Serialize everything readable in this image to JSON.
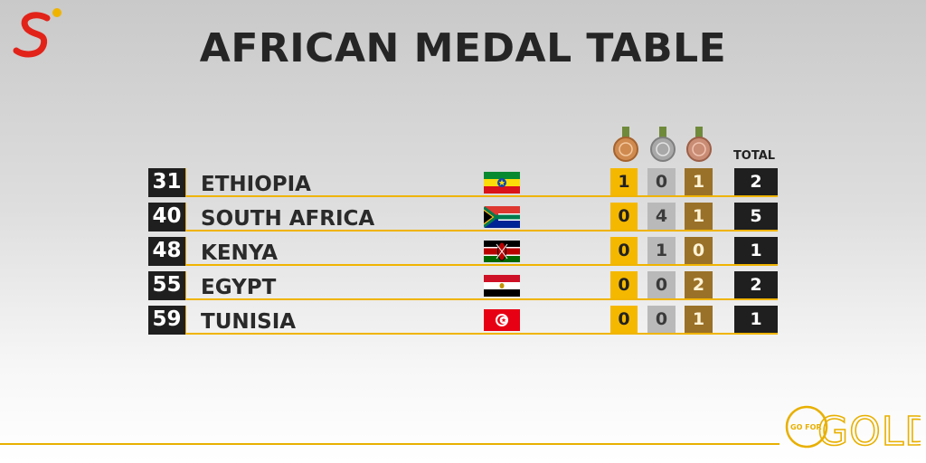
{
  "title": "AFRICAN MEDAL TABLE",
  "headers": {
    "total": "TOTAL"
  },
  "medal_icons": [
    "gold-medal-icon",
    "silver-medal-icon",
    "bronze-medal-icon"
  ],
  "rows": [
    {
      "rank": "31",
      "country": "ETHIOPIA",
      "flag": "ethiopia-flag-icon",
      "gold": "1",
      "silver": "0",
      "bronze": "1",
      "total": "2"
    },
    {
      "rank": "40",
      "country": "SOUTH AFRICA",
      "flag": "south-africa-flag-icon",
      "gold": "0",
      "silver": "4",
      "bronze": "1",
      "total": "5"
    },
    {
      "rank": "48",
      "country": "KENYA",
      "flag": "kenya-flag-icon",
      "gold": "0",
      "silver": "1",
      "bronze": "0",
      "total": "1"
    },
    {
      "rank": "55",
      "country": "EGYPT",
      "flag": "egypt-flag-icon",
      "gold": "0",
      "silver": "0",
      "bronze": "2",
      "total": "2"
    },
    {
      "rank": "59",
      "country": "TUNISIA",
      "flag": "tunisia-flag-icon",
      "gold": "0",
      "silver": "0",
      "bronze": "1",
      "total": "1"
    }
  ],
  "footer": {
    "tagline_small": "GO FOR",
    "tagline_big": "GOLD"
  },
  "colors": {
    "gold": "#f5b800",
    "silver": "#b9b9b9",
    "bronze": "#9a7128",
    "dark": "#1f1f1f",
    "accent": "#f0b400",
    "brand_red": "#e2231a"
  }
}
